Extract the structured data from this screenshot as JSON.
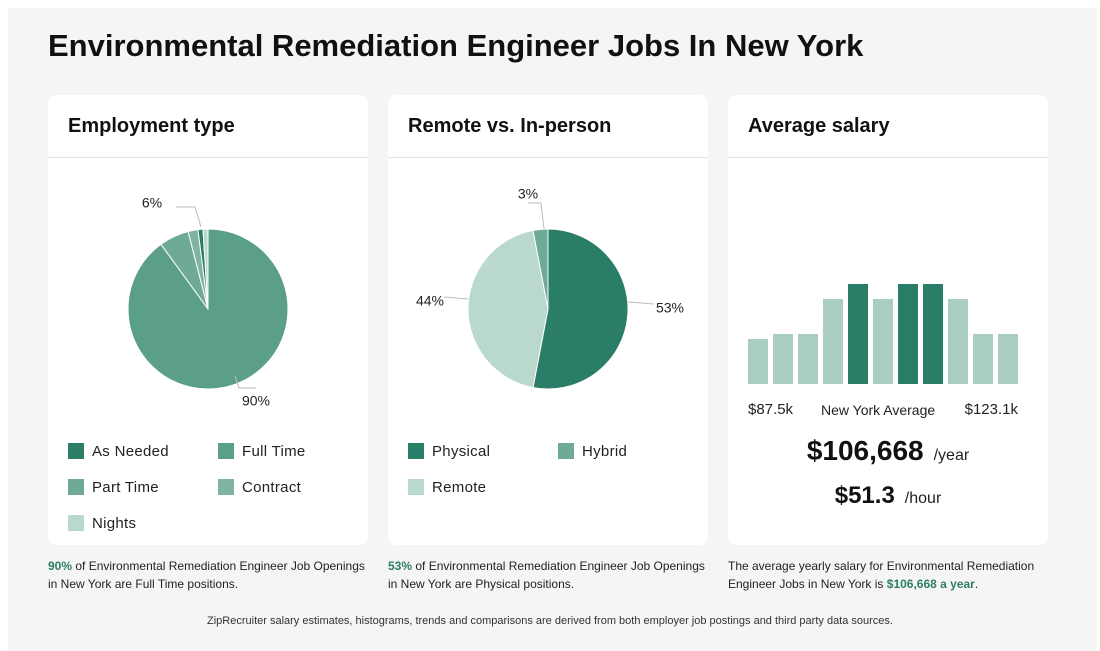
{
  "page": {
    "title": "Environmental Remediation Engineer Jobs In New York",
    "footer": "ZipRecruiter salary estimates, histograms, trends and comparisons are derived from both employer job postings and third party data sources."
  },
  "colors": {
    "dark_green": "#2a7d66",
    "medium_green": "#5b9e89",
    "light_green": "#80b3a3",
    "pale_green": "#b9d8ce",
    "accent_text": "#2e7d64"
  },
  "employment": {
    "title": "Employment type",
    "caption_pct": "90%",
    "caption_rest": " of Environmental Remediation Engineer Job Openings in New York are Full Time positions.",
    "legend": [
      {
        "label": "As Needed",
        "color": "#2a7d66"
      },
      {
        "label": "Full Time",
        "color": "#5b9e89"
      },
      {
        "label": "Part Time",
        "color": "#6fa997"
      },
      {
        "label": "Contract",
        "color": "#80b3a3"
      },
      {
        "label": "Nights",
        "color": "#b9d8ce"
      }
    ]
  },
  "remote": {
    "title": "Remote vs. In-person",
    "caption_pct": "53%",
    "caption_rest": " of Environmental Remediation Engineer Job Openings in New York are Physical positions.",
    "legend": [
      {
        "label": "Physical",
        "color": "#2a7d66"
      },
      {
        "label": "Hybrid",
        "color": "#6fa997"
      },
      {
        "label": "Remote",
        "color": "#b9d8ce"
      }
    ]
  },
  "salary": {
    "title": "Average salary",
    "low_label": "$87.5k",
    "mid_label": "New York Average",
    "high_label": "$123.1k",
    "yearly": "$106,668",
    "yearly_unit": "/year",
    "hourly": "$51.3",
    "hourly_unit": "/hour",
    "caption_prefix": "The average yearly salary for Environmental Remediation Engineer Jobs in New York is ",
    "caption_highlight": "$106,668 a year",
    "caption_suffix": "."
  },
  "chart_data": [
    {
      "type": "pie",
      "title": "Employment type",
      "start_angle_deg": 0,
      "slices": [
        {
          "label": "Full Time",
          "value": 90,
          "display": "90%",
          "color": "#5b9e89",
          "show_label": true
        },
        {
          "label": "Part Time",
          "value": 6,
          "display": "6%",
          "color": "#6fa997",
          "show_label": true
        },
        {
          "label": "Contract",
          "value": 2,
          "display": "",
          "color": "#80b3a3",
          "show_label": false
        },
        {
          "label": "As Needed",
          "value": 1,
          "display": "",
          "color": "#2a7d66",
          "show_label": false
        },
        {
          "label": "Nights",
          "value": 1,
          "display": "",
          "color": "#b9d8ce",
          "show_label": false
        }
      ]
    },
    {
      "type": "pie",
      "title": "Remote vs. In-person",
      "start_angle_deg": 0,
      "slices": [
        {
          "label": "Physical",
          "value": 53,
          "display": "53%",
          "color": "#2a7d66",
          "show_label": true
        },
        {
          "label": "Remote",
          "value": 44,
          "display": "44%",
          "color": "#b9d8ce",
          "show_label": true
        },
        {
          "label": "Hybrid",
          "value": 3,
          "display": "3%",
          "color": "#6fa997",
          "show_label": true
        }
      ]
    },
    {
      "type": "bar",
      "title": "Average salary",
      "values": [
        4.5,
        5,
        5,
        8.5,
        10,
        8.5,
        10,
        10,
        8.5,
        5,
        5
      ],
      "highlight": [
        false,
        false,
        false,
        false,
        true,
        false,
        true,
        true,
        false,
        false,
        false
      ],
      "ylim": [
        0,
        10
      ],
      "color": "#a9cdc1",
      "highlight_color": "#2a7d66"
    }
  ]
}
